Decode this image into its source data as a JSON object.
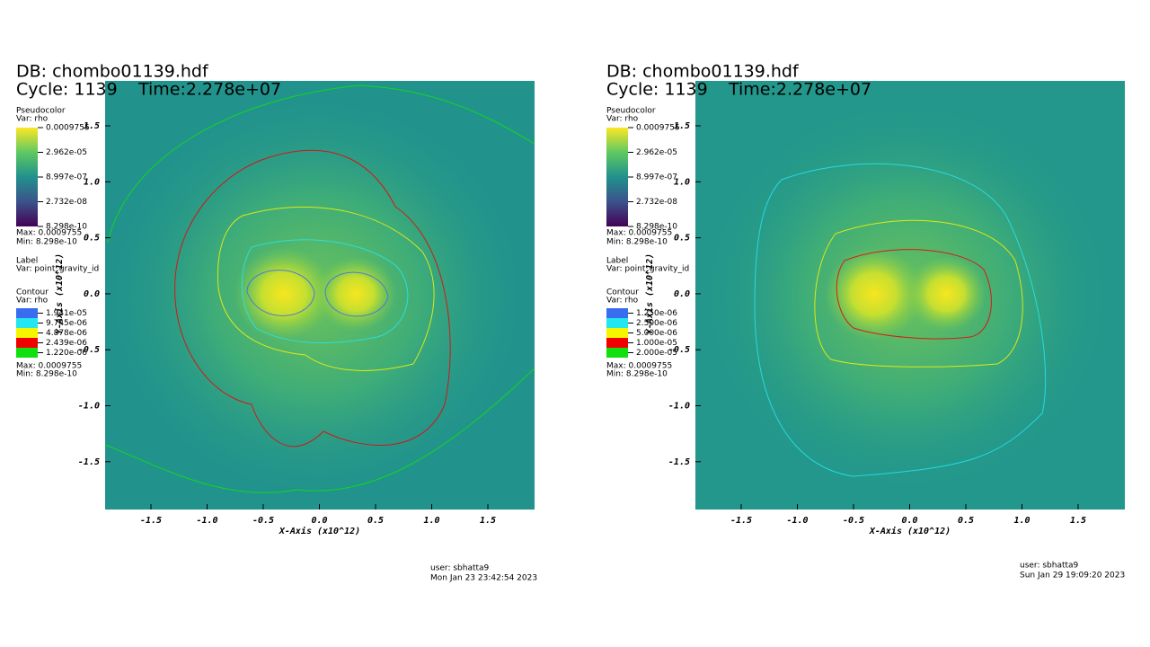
{
  "panels": [
    {
      "db": "DB: chombo01139.hdf",
      "cycle": "Cycle: 1139",
      "time": "Time:2.278e+07",
      "pseudocolor": {
        "title": "Pseudocolor",
        "var": "Var: rho",
        "ticks": [
          "0.0009755",
          "2.962e-05",
          "8.997e-07",
          "2.732e-08",
          "8.298e-10"
        ],
        "max": "Max: 0.0009755",
        "min": "Min: 8.298e-10"
      },
      "label": {
        "title": "Label",
        "var": "Var: point_gravity_id"
      },
      "contour": {
        "title": "Contour",
        "var": "Var: rho",
        "levels": [
          {
            "label": "1.941e-05",
            "color": "#3a6cf0"
          },
          {
            "label": "9.745e-06",
            "color": "#22e6f0"
          },
          {
            "label": "4.878e-06",
            "color": "#f5f500"
          },
          {
            "label": "2.439e-06",
            "color": "#f00000"
          },
          {
            "label": "1.220e-06",
            "color": "#10e010"
          }
        ],
        "max": "Max: 0.0009755",
        "min": "Min: 8.298e-10"
      },
      "xticks": [
        "-1.5",
        "-1.0",
        "-0.5",
        "0.0",
        "0.5",
        "1.0",
        "1.5"
      ],
      "yticks": [
        "1.5",
        "1.0",
        "0.5",
        "0.0",
        "-0.5",
        "-1.0",
        "-1.5"
      ],
      "xlabel": "X-Axis (x10^12)",
      "ylabel": "Y-Axis (x10^12)",
      "user": "user: sbhatta9",
      "date": "Mon Jan 23 23:42:54 2023"
    },
    {
      "db": "DB: chombo01139.hdf",
      "cycle": "Cycle: 1139",
      "time": "Time:2.278e+07",
      "pseudocolor": {
        "title": "Pseudocolor",
        "var": "Var: rho",
        "ticks": [
          "0.0009755",
          "2.962e-05",
          "8.997e-07",
          "2.732e-08",
          "8.298e-10"
        ],
        "max": "Max: 0.0009755",
        "min": "Min: 8.298e-10"
      },
      "label": {
        "title": "Label",
        "var": "Var: point_gravity_id"
      },
      "contour": {
        "title": "Contour",
        "var": "Var: rho",
        "levels": [
          {
            "label": "1.250e-06",
            "color": "#3a6cf0"
          },
          {
            "label": "2.500e-06",
            "color": "#22e6f0"
          },
          {
            "label": "5.000e-06",
            "color": "#f5f500"
          },
          {
            "label": "1.000e-05",
            "color": "#f00000"
          },
          {
            "label": "2.000e-05",
            "color": "#10e010"
          }
        ],
        "max": "Max: 0.0009755",
        "min": "Min: 8.298e-10"
      },
      "xticks": [
        "-1.5",
        "-1.0",
        "-0.5",
        "0.0",
        "0.5",
        "1.0",
        "1.5"
      ],
      "yticks": [
        "1.5",
        "1.0",
        "0.5",
        "0.0",
        "-0.5",
        "-1.0",
        "-1.5"
      ],
      "xlabel": "X-Axis (x10^12)",
      "ylabel": "Y-Axis (x10^12)",
      "user": "user: sbhatta9",
      "date": "Sun Jan 29 19:09:20 2023"
    }
  ]
}
